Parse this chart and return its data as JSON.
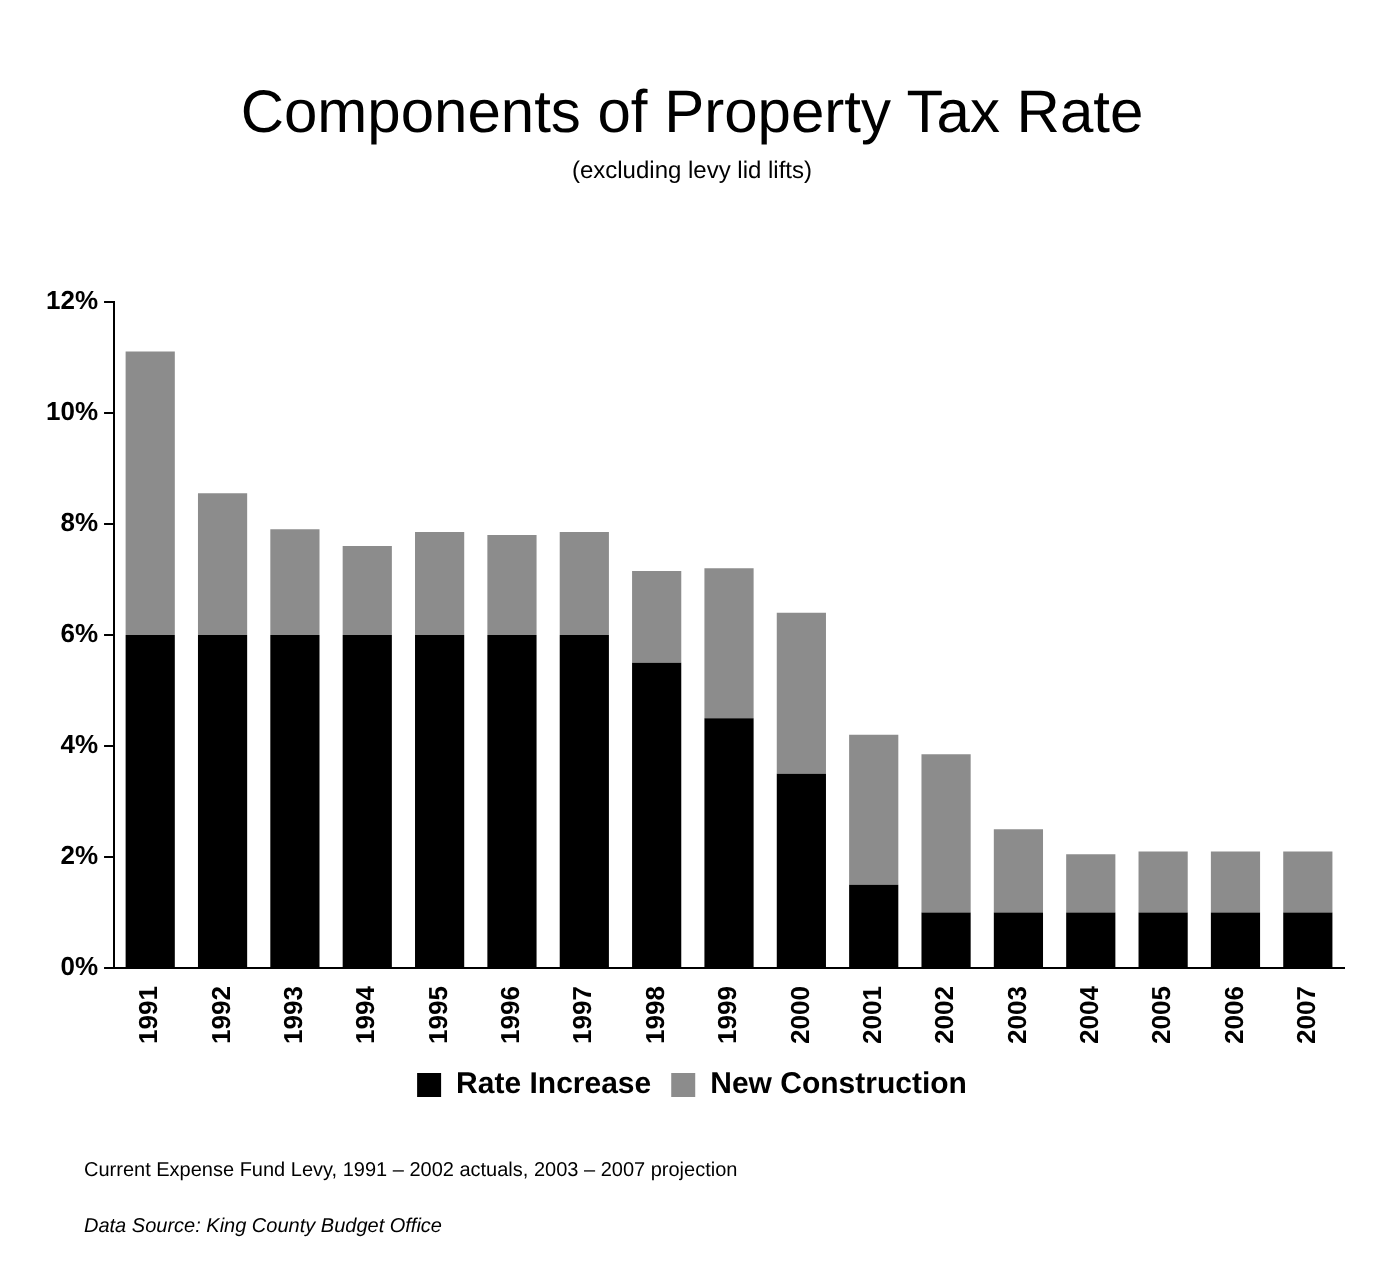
{
  "chart_data": {
    "type": "bar",
    "title": "Components of Property Tax Rate",
    "subtitle": "(excluding levy lid lifts)",
    "categories": [
      "1991",
      "1992",
      "1993",
      "1994",
      "1995",
      "1996",
      "1997",
      "1998",
      "1999",
      "2000",
      "2001",
      "2002",
      "2003",
      "2004",
      "2005",
      "2006",
      "2007"
    ],
    "series": [
      {
        "name": "Rate Increase",
        "color": "#000000",
        "values": [
          6,
          6,
          6,
          6,
          6,
          6,
          6,
          5.5,
          4.5,
          3.5,
          1.5,
          1,
          1,
          1,
          1,
          1,
          1
        ]
      },
      {
        "name": "New Construction",
        "color": "#8c8c8c",
        "values": [
          5.1,
          2.55,
          1.9,
          1.6,
          1.85,
          1.8,
          1.85,
          1.65,
          2.7,
          2.9,
          2.7,
          2.85,
          1.5,
          1.05,
          1.1,
          1.1,
          1.1
        ]
      }
    ],
    "stacked": true,
    "ylim": [
      0,
      12
    ],
    "yticks": [
      {
        "value": 0,
        "label": "0%"
      },
      {
        "value": 2,
        "label": "2%"
      },
      {
        "value": 4,
        "label": "4%"
      },
      {
        "value": 6,
        "label": "6%"
      },
      {
        "value": 8,
        "label": "8%"
      },
      {
        "value": 10,
        "label": "10%"
      },
      {
        "value": 12,
        "label": "12%"
      }
    ],
    "grid": false,
    "legend": "bottom",
    "annotations": [
      "Current Expense Fund Levy, 1991 – 2002 actuals, 2003 – 2007 projection",
      "Data Source:  King County Budget Office"
    ]
  }
}
